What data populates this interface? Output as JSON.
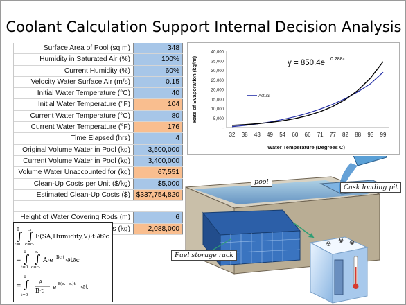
{
  "slide": {
    "title": "Coolant Calculation Support Internal Decision Analysis"
  },
  "table": {
    "rows": [
      {
        "label": "Surface Area of Pool (sq m)",
        "value": "348",
        "style": "blue"
      },
      {
        "label": "Humidity in Saturated Air (%)",
        "value": "100%",
        "style": "blue"
      },
      {
        "label": "Current Humidity (%)",
        "value": "60%",
        "style": "blue"
      },
      {
        "label": "Velocity Water Surface Air (m/s)",
        "value": "0.15",
        "style": "blue"
      },
      {
        "label": "Initial Water Temperature (°C)",
        "value": "40",
        "style": "blue"
      },
      {
        "label": "Initial Water Temperature (°F)",
        "value": "104",
        "style": "orange"
      },
      {
        "label": "Current Water Temperature (°C)",
        "value": "80",
        "style": "blue"
      },
      {
        "label": "Current Water Temperature (°F)",
        "value": "176",
        "style": "orange"
      },
      {
        "label": "Time Elapsed (hrs)",
        "value": "4",
        "style": "blue"
      },
      {
        "label": "Original Volume Water in Pool (kg)",
        "value": "3,500,000",
        "style": "blue"
      },
      {
        "label": "Current Volume Water in Pool (kg)",
        "value": "3,400,000",
        "style": "blue"
      },
      {
        "label": "Volume Water Unaccounted for (kg)",
        "value": "67,551",
        "style": "orange"
      },
      {
        "label": "Clean-Up Costs per Unit ($/kg)",
        "value": "$5,000",
        "style": "blue"
      },
      {
        "label": "Estimated Clean-Up Costs ($)",
        "value": "$337,754,820",
        "style": "orange"
      }
    ],
    "rows2": [
      {
        "label": "Height of Water Covering Rods (m)",
        "value": "6",
        "style": "blue"
      },
      {
        "label": "Volume of Water Covering Rods (kg)",
        "value": "2,088,000",
        "style": "orange"
      }
    ]
  },
  "formula": {
    "line1": "F(SA,Humidity,V)·t·∂t∂c",
    "line2_a": "A·e",
    "line2_exp": "Bc·t",
    "line2_b": "·∂t∂c",
    "line3_num": "A",
    "line3_den": "B·t",
    "line3_e": "e",
    "line3_exp": "B(c₁−c₀)t",
    "line3_tail": "·∂t",
    "lim_T": "T",
    "lim_t0": "t=0",
    "lim_c1": "c₁",
    "lim_cc0": "c=c₀",
    "eq": "="
  },
  "picture": {
    "pool_label": "pool",
    "cask_label": "Cask loading pit",
    "fuel_label": "Fuel storage rack"
  },
  "chart_data": {
    "type": "line",
    "title": "",
    "xlabel": "Water Temperature (Degrees C)",
    "ylabel": "Rate of Evaporation (kg/hr)",
    "categories": [
      "32",
      "38",
      "43",
      "49",
      "54",
      "60",
      "66",
      "71",
      "77",
      "82",
      "88",
      "93",
      "99"
    ],
    "ylim": [
      0,
      40000
    ],
    "yticks": [
      "-",
      "5,000",
      "10,000",
      "15,000",
      "20,000",
      "25,000",
      "30,000",
      "35,000",
      "40,000"
    ],
    "series": [
      {
        "name": "Actual",
        "color": "#2732a8",
        "values": [
          450,
          1100,
          1900,
          2900,
          4200,
          5700,
          7500,
          9700,
          12200,
          15200,
          18800,
          23000,
          29000
        ]
      },
      {
        "name": "",
        "color": "#000000",
        "values": [
          1133,
          1506,
          2002,
          2662,
          3540,
          4706,
          6257,
          8319,
          11060,
          14703,
          19547,
          25988,
          34550
        ]
      }
    ],
    "annotation": "y = 850.4e",
    "annotation_exp": "0.288x",
    "legend_position": "left"
  }
}
